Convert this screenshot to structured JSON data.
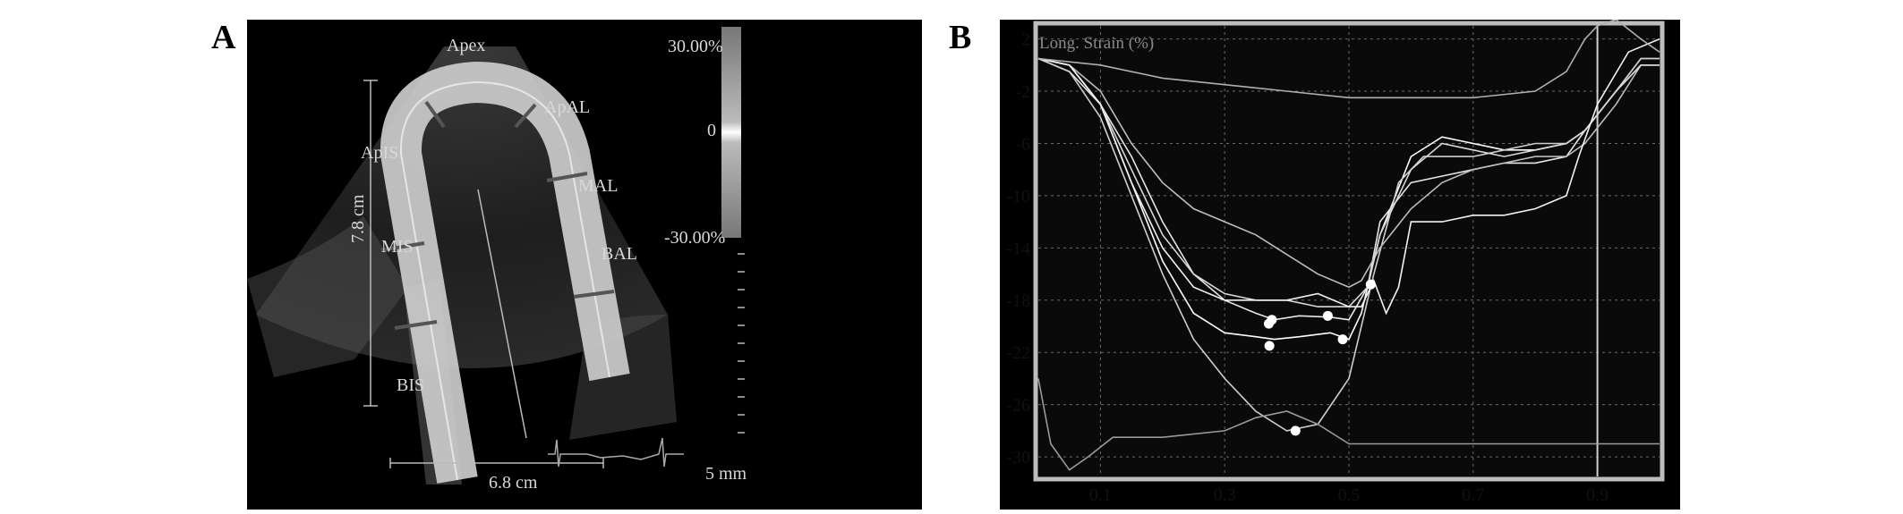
{
  "figure": {
    "panel_a": {
      "letter": "A",
      "segments": {
        "apex": "Apex",
        "apal": "ApAL",
        "apis": "ApIS",
        "mal": "MAL",
        "mis": "MIS",
        "bal": "BAL",
        "bis": "BIS"
      },
      "colorbar": {
        "max_label": "30.00%",
        "mid_label": "0",
        "min_label": "-30.00%"
      },
      "height_label": "7.8 cm",
      "width_label": "6.8 cm",
      "scale_label": "5 mm"
    },
    "panel_b": {
      "letter": "B",
      "plot_title": "Long. Strain (%)"
    }
  },
  "chart_data": {
    "type": "line",
    "title": "Long. Strain (%)",
    "xlabel": "",
    "ylabel": "",
    "xlim": [
      0.0,
      1.0
    ],
    "ylim": [
      -31.5,
      3
    ],
    "x_ticks": [
      0.1,
      0.3,
      0.5,
      0.7,
      0.9
    ],
    "y_ticks": [
      2,
      -2,
      -6,
      -10,
      -14,
      -18,
      -22,
      -26,
      -30
    ],
    "grid": true,
    "vertical_marker_x": 0.9,
    "series": [
      {
        "x": [
          0,
          0.05,
          0.1,
          0.15,
          0.2,
          0.25,
          0.3,
          0.35,
          0.38,
          0.42,
          0.47,
          0.5,
          0.52,
          0.55,
          0.6,
          0.65,
          0.7,
          0.75,
          0.8,
          0.85,
          0.88,
          0.93,
          0.97,
          1.0
        ],
        "y": [
          0.5,
          0,
          -3,
          -9,
          -15,
          -19,
          -20.5,
          -20.8,
          -21,
          -20.8,
          -20.5,
          -21,
          -19,
          -13,
          -7,
          -5.5,
          -6,
          -6.5,
          -6.5,
          -6,
          -5,
          -2,
          0,
          0
        ]
      },
      {
        "x": [
          0,
          0.05,
          0.1,
          0.15,
          0.2,
          0.25,
          0.3,
          0.35,
          0.38,
          0.42,
          0.47,
          0.5,
          0.53,
          0.55,
          0.6,
          0.65,
          0.7,
          0.75,
          0.8,
          0.85,
          0.88,
          0.93,
          0.97,
          1.0
        ],
        "y": [
          0.5,
          -0.5,
          -3,
          -7,
          -12,
          -16,
          -18,
          -19,
          -19.5,
          -19.2,
          -19.3,
          -19.5,
          -17,
          -12,
          -9,
          -8.5,
          -8,
          -7.5,
          -7.5,
          -7,
          -5,
          -2,
          0.5,
          0.5
        ]
      },
      {
        "x": [
          0,
          0.05,
          0.1,
          0.15,
          0.2,
          0.25,
          0.3,
          0.35,
          0.4,
          0.45,
          0.5,
          0.54,
          0.58,
          0.62,
          0.65,
          0.7,
          0.75,
          0.8,
          0.85,
          0.88,
          0.93,
          0.97,
          1.0
        ],
        "y": [
          0.5,
          -0.5,
          -4,
          -10,
          -16,
          -21,
          -24,
          -26.5,
          -28,
          -27.5,
          -24,
          -16,
          -9,
          -7,
          -7,
          -7,
          -6.5,
          -6,
          -6,
          -5,
          -2,
          0.5,
          0.5
        ]
      },
      {
        "x": [
          0,
          0.05,
          0.1,
          0.15,
          0.2,
          0.25,
          0.3,
          0.35,
          0.4,
          0.45,
          0.5,
          0.52,
          0.55,
          0.6,
          0.65,
          0.7,
          0.75,
          0.8,
          0.85,
          0.88,
          0.93,
          0.97,
          1.0
        ],
        "y": [
          0.5,
          0,
          -2,
          -6,
          -9,
          -11,
          -12,
          -13,
          -14.5,
          -16,
          -17,
          -16.5,
          -14,
          -11,
          -9,
          -8,
          -7.5,
          -7,
          -7,
          -6,
          -3,
          0,
          0
        ]
      },
      {
        "x": [
          0,
          0.05,
          0.1,
          0.15,
          0.2,
          0.25,
          0.3,
          0.35,
          0.4,
          0.45,
          0.5,
          0.53,
          0.55,
          0.6,
          0.65,
          0.7,
          0.75,
          0.8,
          0.85,
          0.88,
          0.93,
          0.97,
          1.0
        ],
        "y": [
          0.5,
          0,
          -3,
          -8,
          -13,
          -16,
          -17.5,
          -18,
          -18,
          -18.5,
          -18.5,
          -17,
          -13,
          -8,
          -6,
          -6.5,
          -7,
          -6.5,
          -6,
          -5,
          -2,
          0,
          0
        ]
      },
      {
        "x": [
          0,
          0.05,
          0.1,
          0.15,
          0.2,
          0.25,
          0.3,
          0.35,
          0.4,
          0.45,
          0.5,
          0.52,
          0.54,
          0.56,
          0.58,
          0.6,
          0.65,
          0.7,
          0.75,
          0.8,
          0.85,
          0.87,
          0.9,
          0.95,
          1.0
        ],
        "y": [
          0.5,
          0,
          -3,
          -9,
          -14,
          -17,
          -18,
          -18,
          -18,
          -17.5,
          -18.5,
          -18.5,
          -16.5,
          -19,
          -17,
          -12,
          -12,
          -11.5,
          -11.5,
          -11,
          -10,
          -7,
          -3,
          1,
          2
        ]
      },
      {
        "x": [
          0,
          0.02,
          0.05,
          0.08,
          0.12,
          0.2,
          0.3,
          0.35,
          0.4,
          0.45,
          0.5,
          0.6,
          0.7,
          0.8,
          0.9,
          0.95,
          1.0
        ],
        "y": [
          -24,
          -29,
          -31,
          -30,
          -28.5,
          -28.5,
          -28,
          -27,
          -26.5,
          -27.5,
          -29,
          -29,
          -29,
          -29,
          -29,
          -29,
          -29
        ]
      },
      {
        "x": [
          0,
          0.1,
          0.2,
          0.3,
          0.4,
          0.5,
          0.6,
          0.7,
          0.8,
          0.85,
          0.88,
          0.9,
          0.93,
          0.97,
          1.0
        ],
        "y": [
          0.5,
          0,
          -1,
          -1.5,
          -2,
          -2.5,
          -2.5,
          -2.5,
          -2,
          -0.5,
          2,
          3,
          3.5,
          2,
          1
        ]
      }
    ],
    "markers": [
      {
        "x": 0.376,
        "y": -19.5
      },
      {
        "x": 0.371,
        "y": -19.8
      },
      {
        "x": 0.372,
        "y": -21.5
      },
      {
        "x": 0.414,
        "y": -28
      },
      {
        "x": 0.466,
        "y": -19.2
      },
      {
        "x": 0.49,
        "y": -21
      },
      {
        "x": 0.535,
        "y": -16.8
      }
    ]
  }
}
